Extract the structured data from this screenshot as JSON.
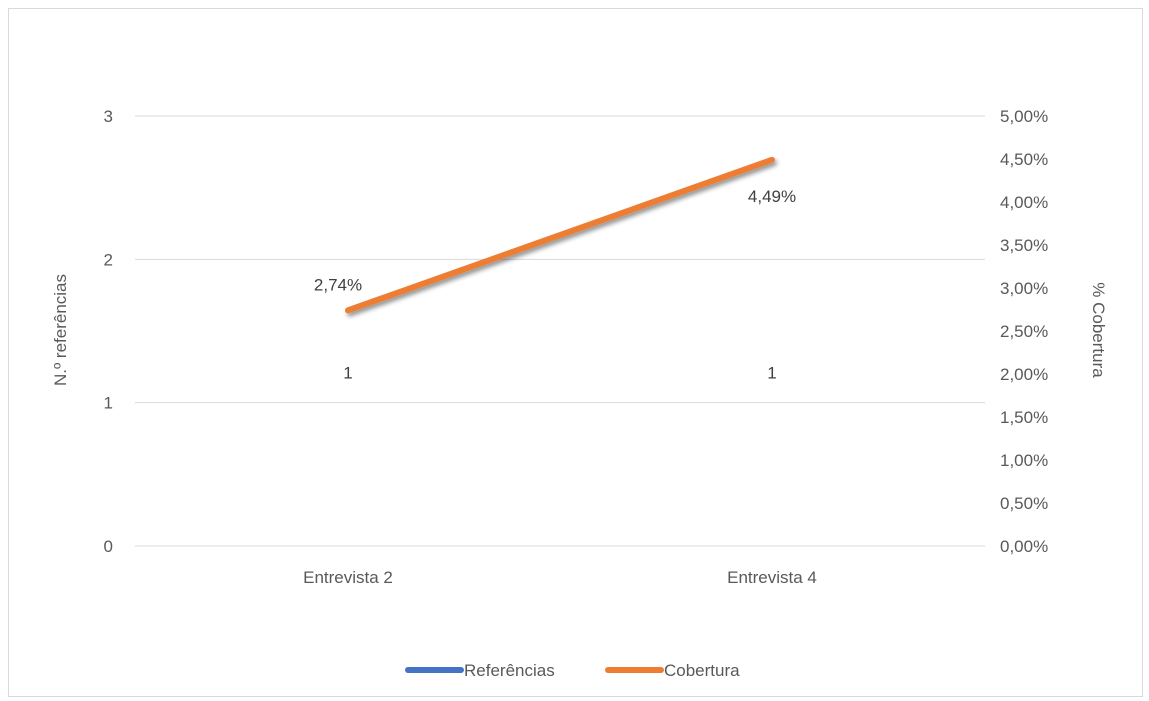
{
  "chart_data": {
    "type": "line",
    "categories": [
      "Entrevista 2",
      "Entrevista 4"
    ],
    "series": [
      {
        "name": "Referências",
        "axis": "left",
        "values": [
          1,
          1
        ],
        "labels": [
          "1",
          "1"
        ],
        "color": "#4472C4"
      },
      {
        "name": "Cobertura",
        "axis": "right",
        "values": [
          2.74,
          4.49
        ],
        "labels": [
          "2,74%",
          "4,49%"
        ],
        "color": "#ED7D31"
      }
    ],
    "ylabel": "N.º referências",
    "ylabel_right": "% Cobertura",
    "ylim": [
      0,
      3
    ],
    "ylim_right": [
      0,
      5
    ],
    "yticks": [
      "0",
      "1",
      "2",
      "3"
    ],
    "yticks_right": [
      "0,00%",
      "0,50%",
      "1,00%",
      "1,50%",
      "2,00%",
      "2,50%",
      "3,00%",
      "3,50%",
      "4,00%",
      "4,50%",
      "5,00%"
    ],
    "grid": true,
    "legend_position": "bottom"
  }
}
